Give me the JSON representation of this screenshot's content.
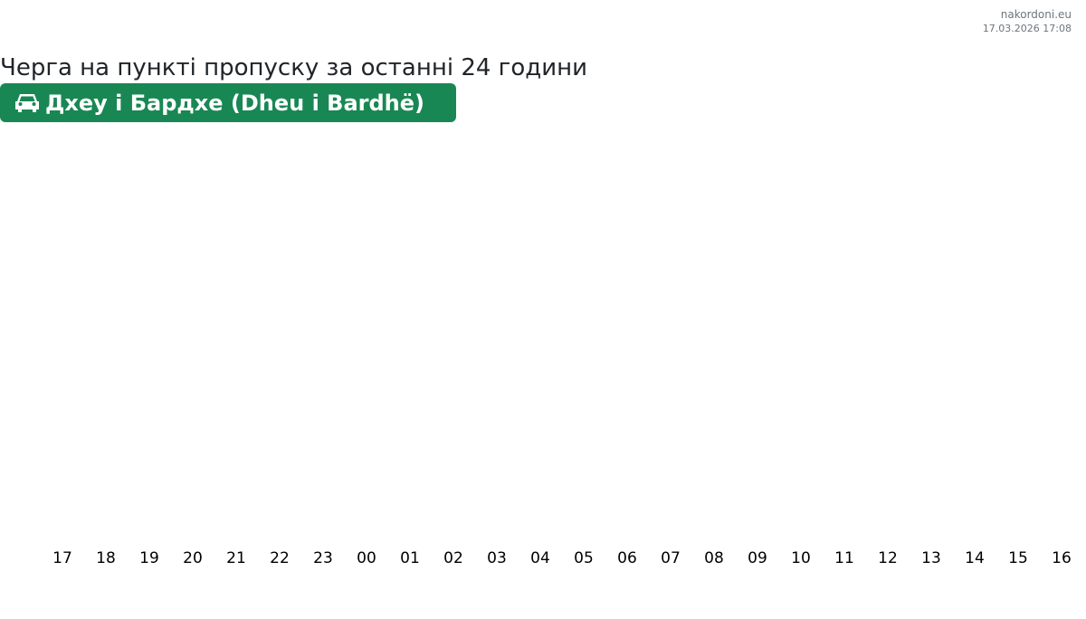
{
  "site": "nakordoni.eu",
  "timestamp": "17.03.2026 17:08",
  "title": "Черга на пункті пропуску за останні 24 години",
  "checkpoint": {
    "name": "Дхеу і Бардхе (Dheu i Bardhë)",
    "icon": "car-icon",
    "color": "#198754"
  },
  "chart_data": {
    "type": "bar",
    "categories": [
      "17",
      "18",
      "19",
      "20",
      "21",
      "22",
      "23",
      "00",
      "01",
      "02",
      "03",
      "04",
      "05",
      "06",
      "07",
      "08",
      "09",
      "10",
      "11",
      "12",
      "13",
      "14",
      "15",
      "16"
    ],
    "series": [],
    "xlabel": "",
    "ylabel": "",
    "grid": false
  }
}
